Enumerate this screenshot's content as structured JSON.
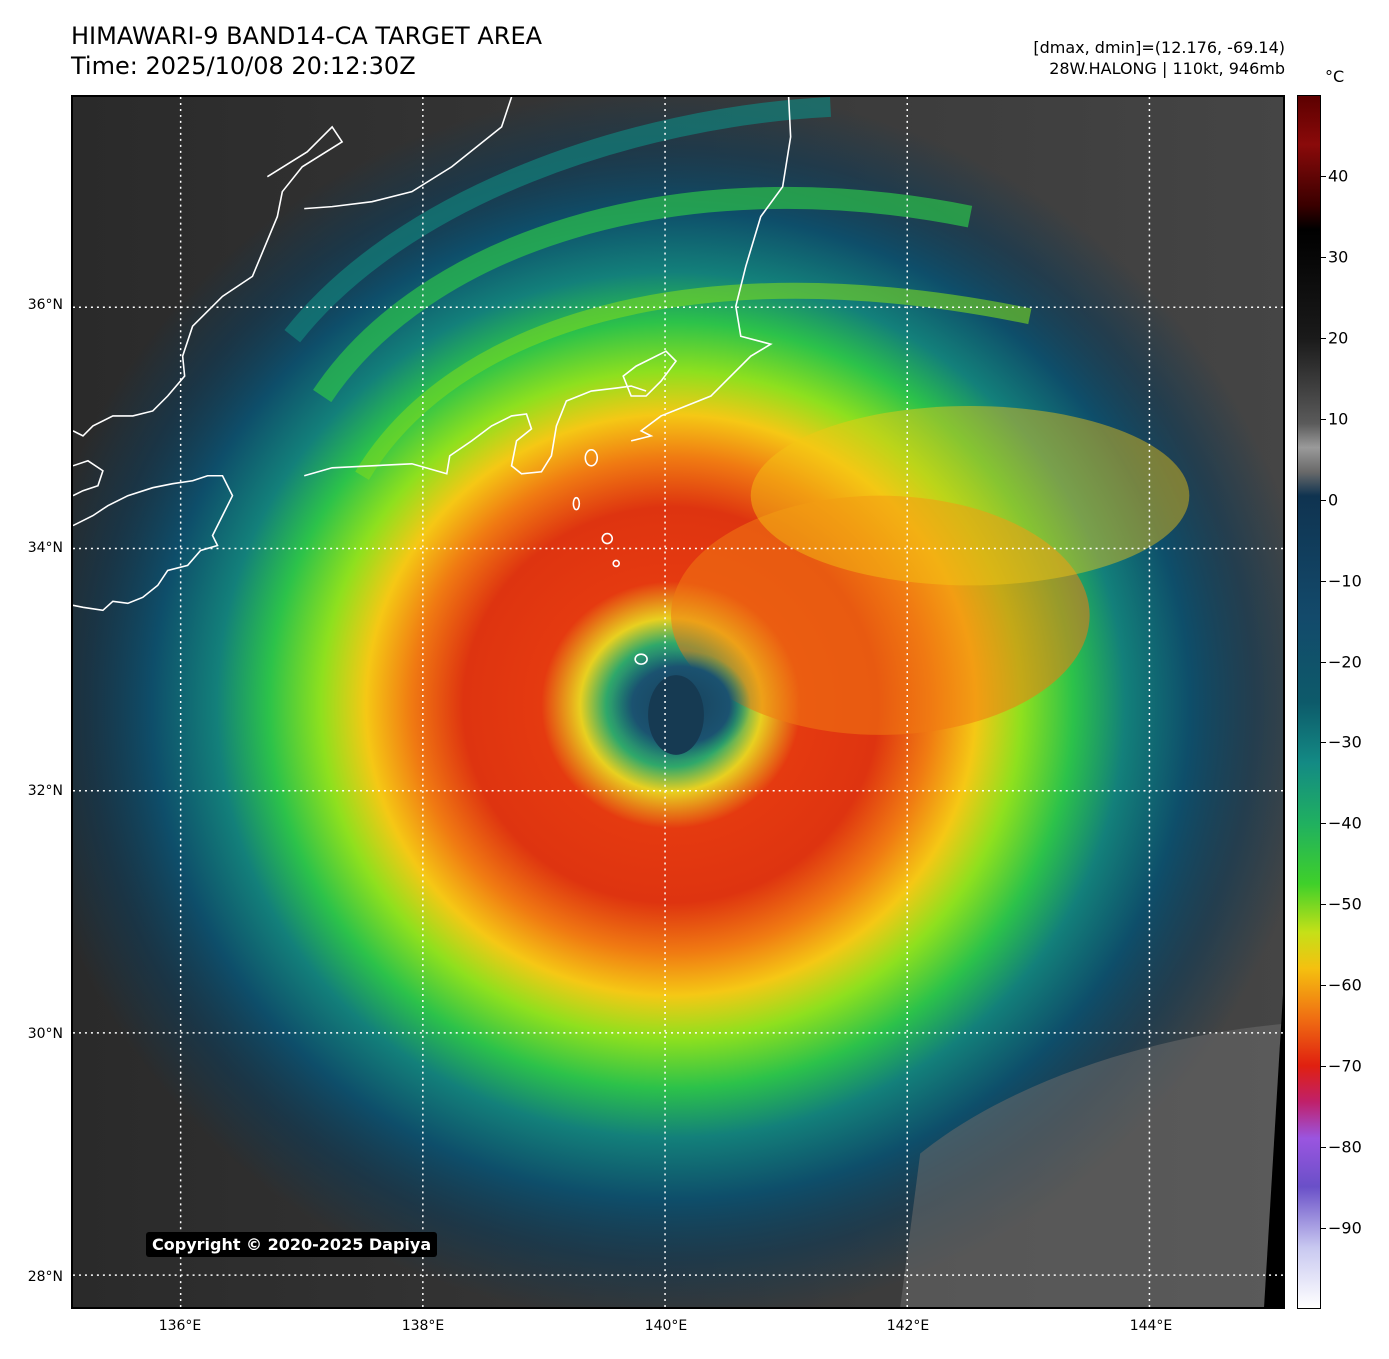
{
  "header": {
    "title_line1": "HIMAWARI-9 BAND14-CA TARGET AREA",
    "title_line2": "Time: 2025/10/08 20:12:30Z",
    "info_line1": "[dmax, dmin]=(12.176, -69.14)",
    "info_line2": "28W.HALONG | 110kt, 946mb"
  },
  "map": {
    "copyright": "Copyright © 2020-2025 Dapiya",
    "lat_labels": [
      "36°N",
      "34°N",
      "32°N",
      "30°N",
      "28°N"
    ],
    "lon_labels": [
      "136°E",
      "138°E",
      "140°E",
      "142°E",
      "144°E"
    ],
    "colors": {
      "land_bg": "#2a2a2a",
      "coastline": "#ffffff",
      "grid": "#ffffff"
    }
  },
  "colorbar": {
    "unit": "°C",
    "ticks": [
      "40",
      "30",
      "20",
      "10",
      "0",
      "−10",
      "−20",
      "−30",
      "−40",
      "−50",
      "−60",
      "−70",
      "−80",
      "−90"
    ],
    "tick_values": [
      40,
      30,
      20,
      10,
      0,
      -10,
      -20,
      -30,
      -40,
      -50,
      -60,
      -70,
      -80,
      -90
    ],
    "range": [
      -100,
      50
    ]
  }
}
